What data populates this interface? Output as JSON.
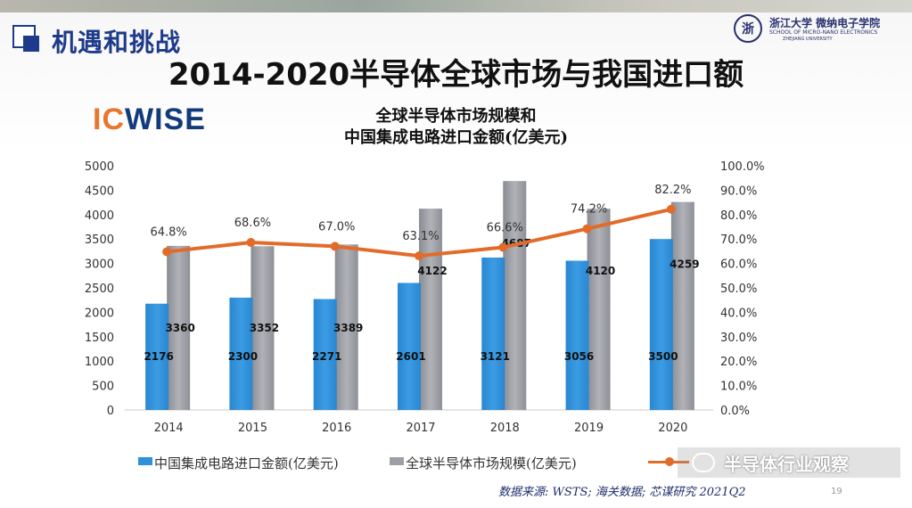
{
  "slide": {
    "section_title": "机遇和挑战",
    "main_title": "2014-2020半导体全球市场与我国进口额",
    "logo": {
      "ic": "IC",
      "wise": "WISE"
    },
    "university": {
      "name": "浙江大学 微纳电子学院",
      "english_1": "SCHOOL OF MICRO-NANO ELECTRONICS",
      "english_2": "ZHEJIANG UNIVERSITY"
    },
    "chart_title_line1": "全球半导体市场规模和",
    "chart_title_line2": "中国集成电路进口金额(亿美元)",
    "source": "数据来源: WSTS; 海关数据; 芯谋研究 2021Q2",
    "page_number": "19",
    "watermark": {
      "name": "半导体行业观察"
    },
    "colors": {
      "china_bar": "#2f91db",
      "global_bar": "#9d9fa6",
      "ratio_line": "#e36b29",
      "title_blue": "#1e3a8a"
    }
  },
  "chart_data": {
    "type": "bar",
    "title": "全球半导体市场规模和 中国集成电路进口金额(亿美元)",
    "categories": [
      "2014",
      "2015",
      "2016",
      "2017",
      "2018",
      "2019",
      "2020"
    ],
    "series": [
      {
        "name": "中国集成电路进口金额(亿美元)",
        "type": "bar",
        "axis": "left",
        "values": [
          2176,
          2300,
          2271,
          2601,
          3121,
          3056,
          3500
        ]
      },
      {
        "name": "全球半导体市场规模(亿美元)",
        "type": "bar",
        "axis": "left",
        "values": [
          3360,
          3352,
          3389,
          4122,
          4687,
          4120,
          4259
        ]
      },
      {
        "name": "",
        "type": "line",
        "axis": "right",
        "values": [
          64.8,
          68.6,
          67.0,
          63.1,
          66.6,
          74.2,
          82.2
        ],
        "labels": [
          "64.8%",
          "68.6%",
          "67.0%",
          "63.1%",
          "66.6%",
          "74.2%",
          "82.2%"
        ]
      }
    ],
    "ylim_left": [
      0,
      5000
    ],
    "yticks_left": [
      "0",
      "500",
      "1000",
      "1500",
      "2000",
      "2500",
      "3000",
      "3500",
      "4000",
      "4500",
      "5000"
    ],
    "ylim_right": [
      0,
      100
    ],
    "yticks_right": [
      "0.0%",
      "10.0%",
      "20.0%",
      "30.0%",
      "40.0%",
      "50.0%",
      "60.0%",
      "70.0%",
      "80.0%",
      "90.0%",
      "100.0%"
    ],
    "legend": [
      "中国集成电路进口金额(亿美元)",
      "全球半导体市场规模(亿美元)",
      ""
    ],
    "legend_position": "bottom",
    "grid": false
  }
}
